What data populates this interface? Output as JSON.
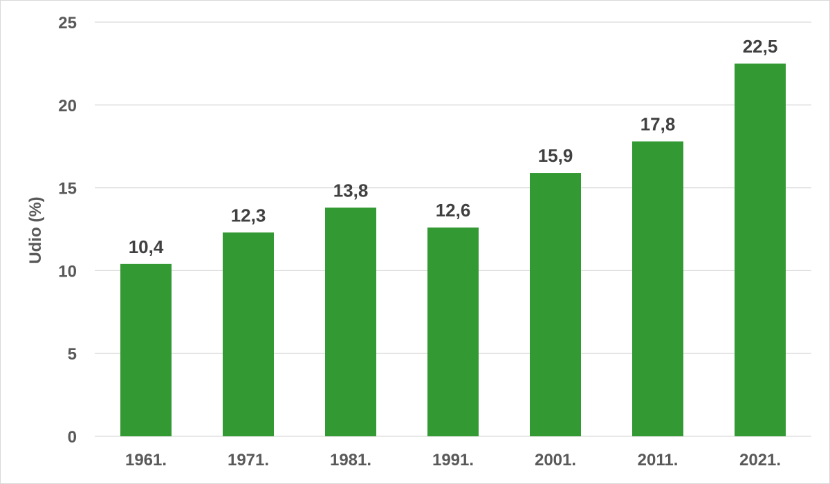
{
  "chart_data": {
    "type": "bar",
    "categories": [
      "1961.",
      "1971.",
      "1981.",
      "1991.",
      "2001.",
      "2011.",
      "2021."
    ],
    "values": [
      10.4,
      12.3,
      13.8,
      12.6,
      15.9,
      17.8,
      22.5
    ],
    "value_labels": [
      "10,4",
      "12,3",
      "13,8",
      "12,6",
      "15,9",
      "17,8",
      "22,5"
    ],
    "title": "",
    "xlabel": "",
    "ylabel": "Udio (%)",
    "ylim": [
      0,
      25
    ],
    "yticks": [
      0,
      5,
      10,
      15,
      20,
      25
    ],
    "grid": true,
    "legend": "none",
    "bar_color": "#339933",
    "grid_color": "#d9d9d9"
  }
}
